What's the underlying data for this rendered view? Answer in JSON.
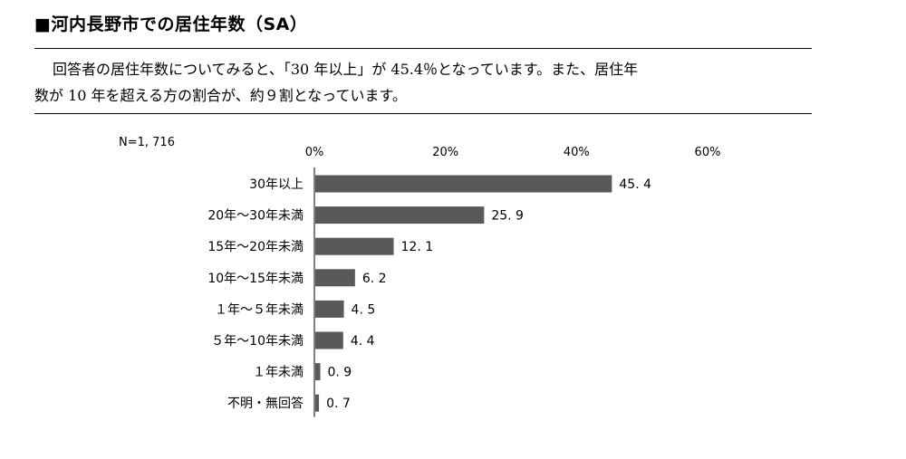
{
  "heading": "■河内長野市での居住年数（SA）",
  "paragraph": {
    "line1": "回答者の居住年数についてみると、「30 年以上」が 45.4％となっています。また、居住年",
    "line2": "数が 10 年を超える方の割合が、約９割となっています。"
  },
  "chart_data": {
    "type": "bar",
    "orientation": "horizontal",
    "note": "N=1, 716",
    "categories": [
      "30年以上",
      "20年～30年未満",
      "15年～20年未満",
      "10年～15年未満",
      "１年～５年未満",
      "５年～10年未満",
      "１年未満",
      "不明・無回答"
    ],
    "values": [
      45.4,
      25.9,
      12.1,
      6.2,
      4.5,
      4.4,
      0.9,
      0.7
    ],
    "value_labels": [
      "45. 4",
      "25. 9",
      "12. 1",
      "6. 2",
      "4. 5",
      "4. 4",
      "0. 9",
      "0. 7"
    ],
    "xlim": [
      0,
      60
    ],
    "ticks": [
      0,
      20,
      40,
      60
    ],
    "tick_labels": [
      "0%",
      "20%",
      "40%",
      "60%"
    ],
    "bar_color": "#595959",
    "grid": false
  }
}
